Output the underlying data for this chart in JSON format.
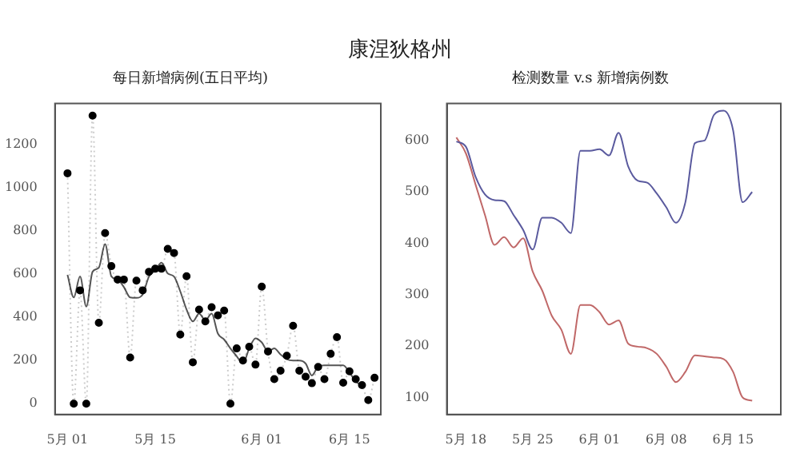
{
  "chart_data": [
    {
      "type": "other",
      "title": "康涅狄格州"
    },
    {
      "type": "line",
      "title": "每日新增病例(五日平均)",
      "xlim": [
        "--04-29",
        "--06-20"
      ],
      "ylim": [
        -50,
        1390
      ],
      "yticks": [
        0,
        200,
        400,
        600,
        800,
        1000,
        1200
      ],
      "xticks": [
        {
          "value": "--05-01",
          "label": "5月 01"
        },
        {
          "value": "--05-15",
          "label": "5月 15"
        },
        {
          "value": "--06-01",
          "label": "6月 01"
        },
        {
          "value": "--06-15",
          "label": "6月 15"
        }
      ],
      "grid": false,
      "legend": false,
      "x": [
        "--05-01",
        "--05-02",
        "--05-03",
        "--05-04",
        "--05-05",
        "--05-06",
        "--05-07",
        "--05-08",
        "--05-09",
        "--05-10",
        "--05-11",
        "--05-12",
        "--05-13",
        "--05-14",
        "--05-15",
        "--05-16",
        "--05-17",
        "--05-18",
        "--05-19",
        "--05-20",
        "--05-21",
        "--05-22",
        "--05-23",
        "--05-24",
        "--05-25",
        "--05-26",
        "--05-27",
        "--05-28",
        "--05-29",
        "--05-30",
        "--05-31",
        "--06-01",
        "--06-02",
        "--06-03",
        "--06-04",
        "--06-05",
        "--06-06",
        "--06-07",
        "--06-08",
        "--06-09",
        "--06-10",
        "--06-11",
        "--06-12",
        "--06-13",
        "--06-14",
        "--06-15",
        "--06-16",
        "--06-17",
        "--06-18",
        "--06-19"
      ],
      "series": [
        {
          "type": "line",
          "marker": "circle",
          "line_style": "dotted",
          "color": "#000000",
          "values": [
            1067,
            0,
            525,
            0,
            1334,
            375,
            790,
            637,
            575,
            575,
            214,
            570,
            525,
            611,
            625,
            625,
            717,
            698,
            320,
            590,
            192,
            436,
            381,
            447,
            409,
            431,
            0,
            256,
            200,
            264,
            181,
            542,
            242,
            114,
            153,
            222,
            361,
            153,
            125,
            95,
            170,
            114,
            231,
            308,
            97,
            150,
            114,
            86,
            17,
            120
          ]
        },
        {
          "type": "line",
          "marker": "none",
          "line_style": "solid",
          "color": "#555555",
          "values": [
            597,
            492,
            589,
            450,
            611,
            630,
            739,
            590,
            575,
            540,
            492,
            490,
            506,
            589,
            617,
            653,
            603,
            589,
            520,
            436,
            381,
            417,
            386,
            417,
            325,
            297,
            256,
            220,
            186,
            256,
            303,
            284,
            242,
            256,
            228,
            206,
            200,
            200,
            186,
            131,
            172,
            178,
            178,
            178,
            178,
            145,
            103,
            86,
            null,
            null
          ]
        }
      ]
    },
    {
      "type": "line",
      "title": "检测数量 v.s 新增病例数",
      "xlim": [
        "--05-16",
        "--06-20"
      ],
      "ylim": [
        67,
        672
      ],
      "yticks": [
        100,
        200,
        300,
        400,
        500,
        600
      ],
      "xticks": [
        {
          "value": "--05-18",
          "label": "5月 18"
        },
        {
          "value": "--05-25",
          "label": "5月 25"
        },
        {
          "value": "--06-01",
          "label": "6月 01"
        },
        {
          "value": "--06-08",
          "label": "6月 08"
        },
        {
          "value": "--06-15",
          "label": "6月 15"
        }
      ],
      "grid": false,
      "legend": false,
      "marker": "none",
      "line_style": "solid",
      "x": [
        "--05-17",
        "--05-18",
        "--05-19",
        "--05-20",
        "--05-21",
        "--05-22",
        "--05-23",
        "--05-24",
        "--05-25",
        "--05-26",
        "--05-27",
        "--05-28",
        "--05-29",
        "--05-30",
        "--05-31",
        "--06-01",
        "--06-02",
        "--06-03",
        "--06-04",
        "--06-05",
        "--06-06",
        "--06-07",
        "--06-08",
        "--06-09",
        "--06-10",
        "--06-11",
        "--06-12",
        "--06-13",
        "--06-14",
        "--06-15",
        "--06-16",
        "--06-17"
      ],
      "series": [
        {
          "color": "#5a5a9e",
          "values": [
            598,
            588,
            530,
            495,
            484,
            482,
            455,
            426,
            388,
            450,
            450,
            440,
            420,
            580,
            580,
            583,
            571,
            615,
            550,
            522,
            518,
            497,
            470,
            440,
            480,
            595,
            600,
            650,
            658,
            620,
            480,
            500
          ]
        },
        {
          "color": "#c06868",
          "values": [
            606,
            575,
            515,
            455,
            397,
            412,
            392,
            410,
            345,
            308,
            259,
            232,
            185,
            280,
            280,
            266,
            242,
            250,
            205,
            199,
            196,
            185,
            160,
            130,
            150,
            182,
            180,
            178,
            175,
            150,
            100,
            94
          ]
        }
      ]
    }
  ]
}
